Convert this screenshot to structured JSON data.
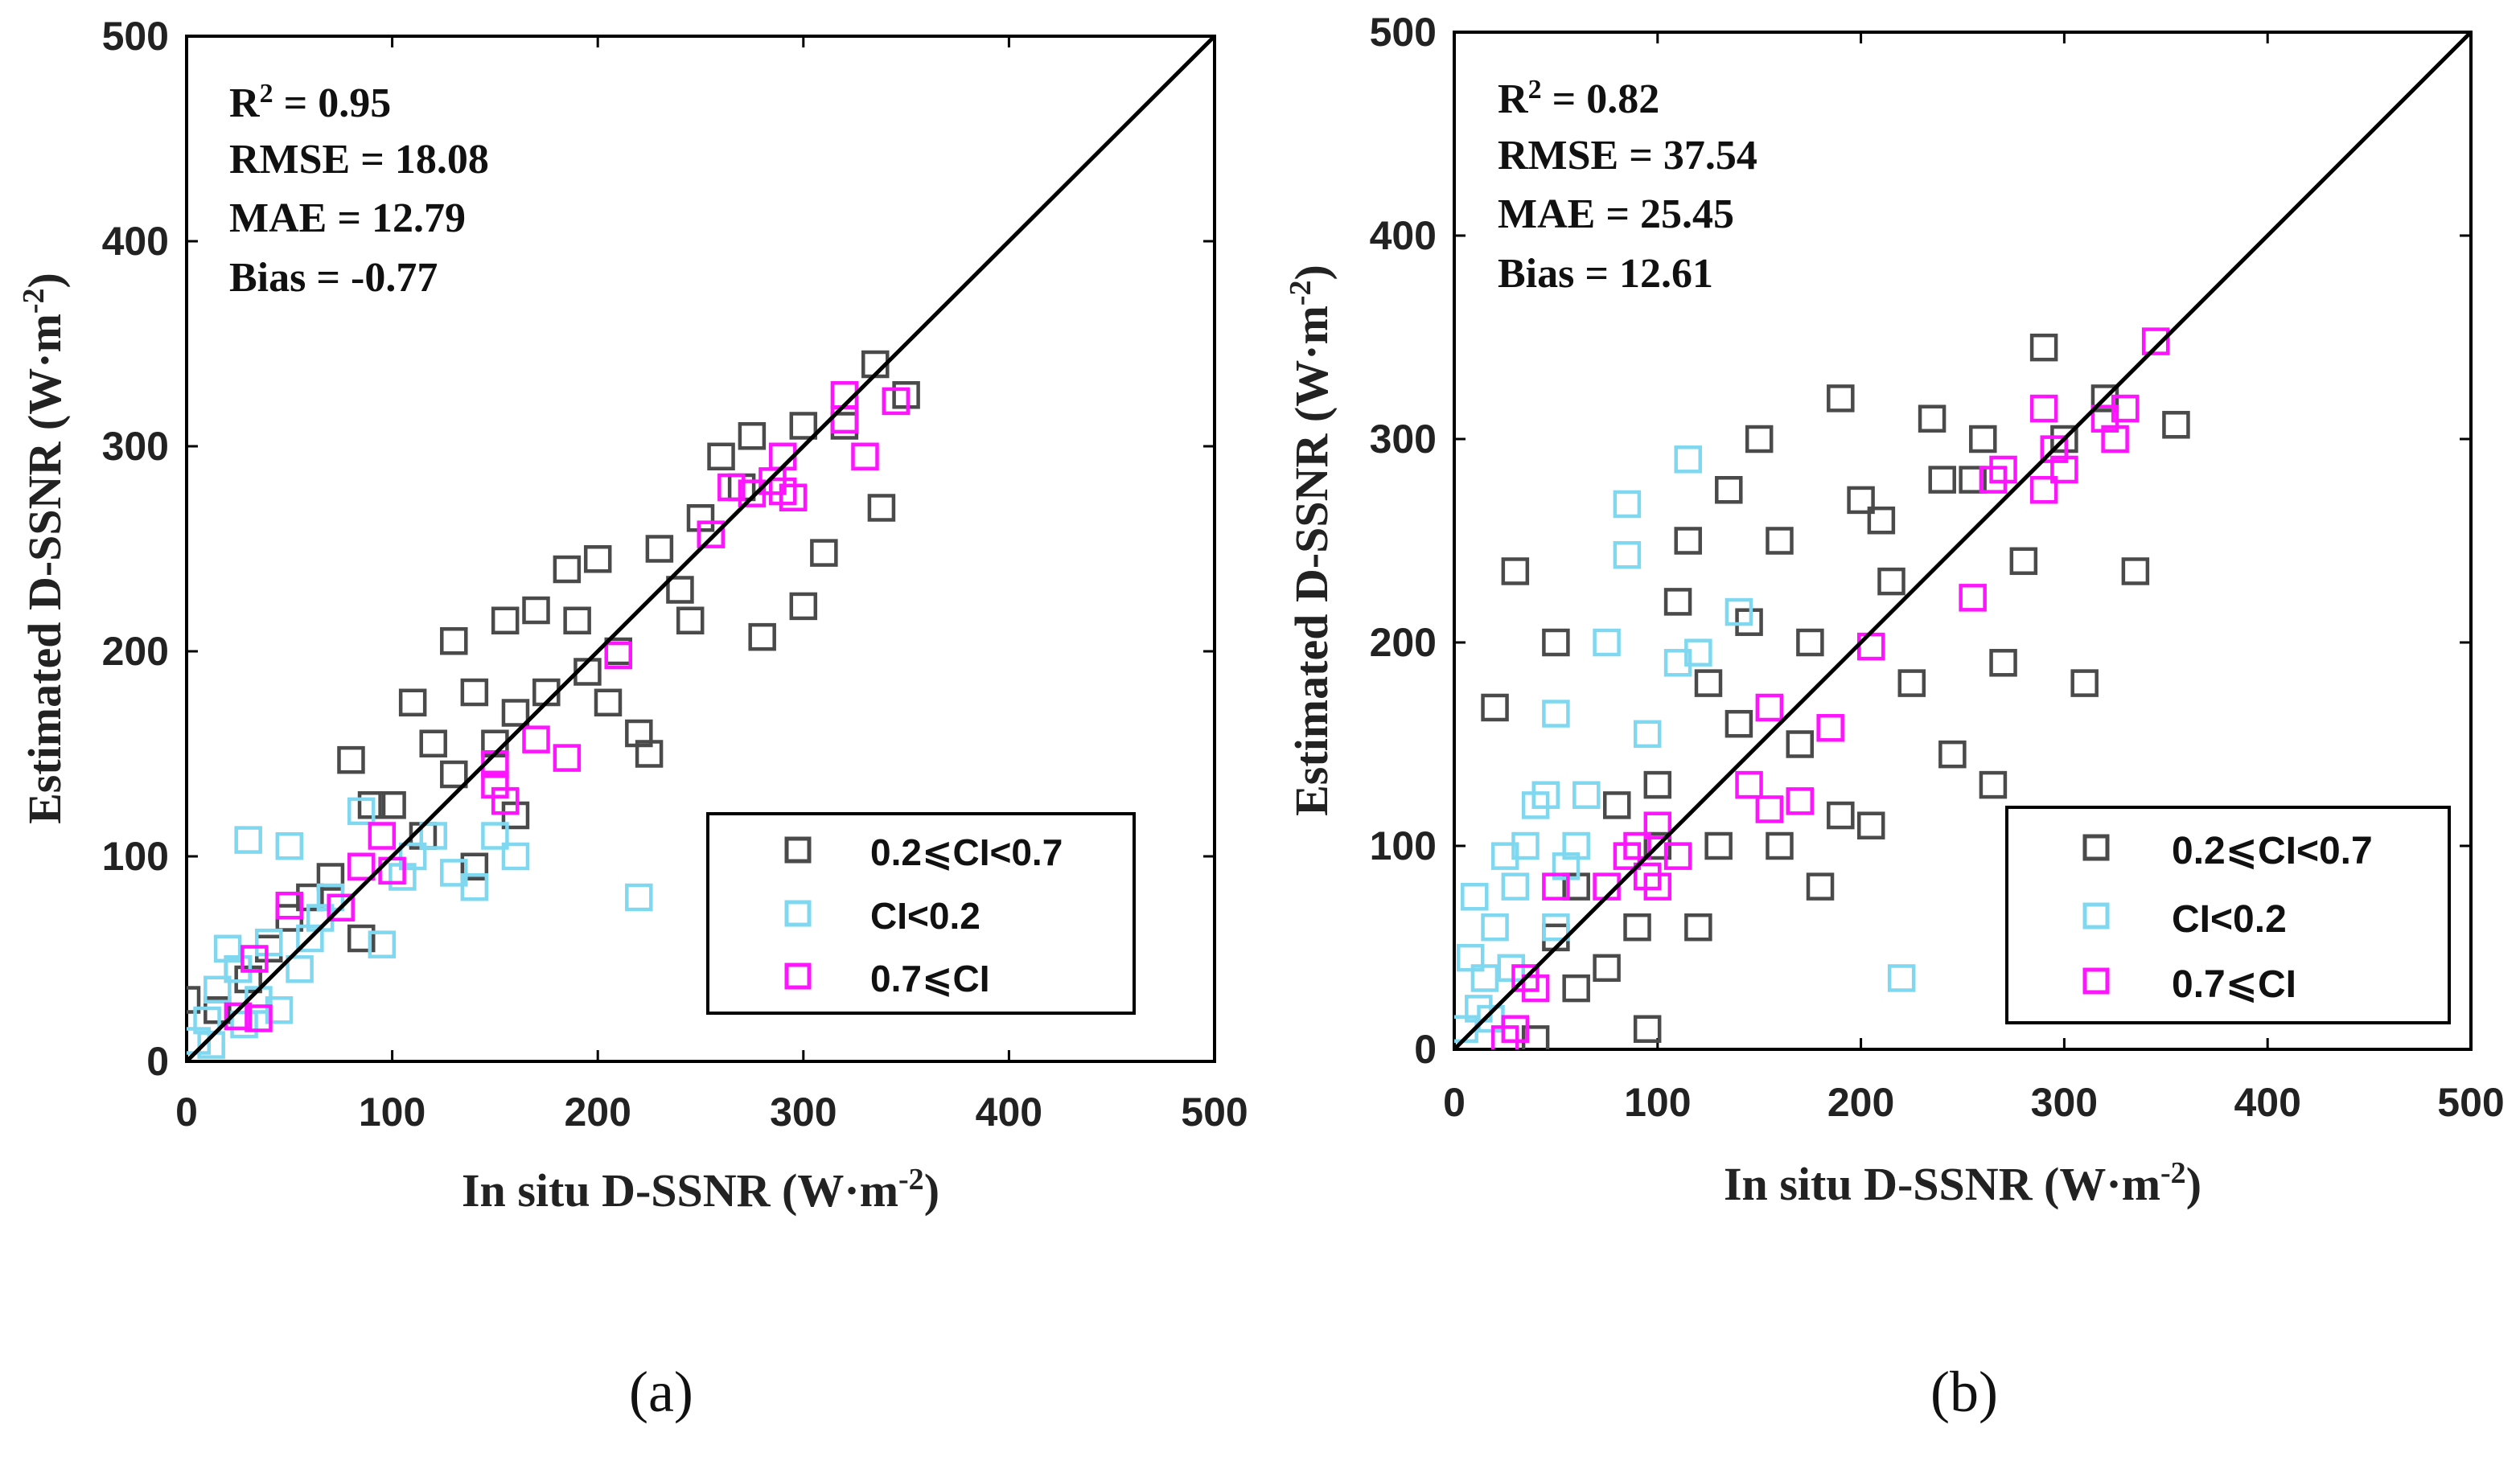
{
  "colors": {
    "cat_mid": "#4a4a4a",
    "cat_low": "#7fd8f0",
    "cat_high": "#ff14ff",
    "line": "#000000"
  },
  "chart_data": [
    {
      "type": "scatter",
      "panel": "(a)",
      "caption": "(a)",
      "xlabel": "In situ D-SSNR (W·m",
      "ylabel": "Estimated D-SSNR (W·m",
      "unit_exponent": "-2",
      "xlim": [
        0,
        500
      ],
      "ylim": [
        0,
        500
      ],
      "xticks": [
        "0",
        "100",
        "200",
        "300",
        "400",
        "500"
      ],
      "yticks": [
        "0",
        "100",
        "200",
        "300",
        "400",
        "500"
      ],
      "reference_line": "1:1",
      "stats": {
        "r2": "R",
        "r2_sup": "2",
        "r2_value": " = 0.95",
        "rmse": "RMSE = 18.08",
        "mae": "MAE = 12.79",
        "bias": "Bias = -0.77"
      },
      "legend": [
        "0.2⩽CI<0.7",
        "CI<0.2",
        "0.7⩽CI"
      ],
      "legend_position": "bottom-right",
      "series": [
        {
          "name": "0.2⩽CI<0.7",
          "points": [
            [
              0,
              30
            ],
            [
              25,
              45
            ],
            [
              40,
              55
            ],
            [
              60,
              80
            ],
            [
              80,
              147
            ],
            [
              90,
              125
            ],
            [
              110,
              175
            ],
            [
              130,
              205
            ],
            [
              140,
              180
            ],
            [
              155,
              215
            ],
            [
              170,
              220
            ],
            [
              185,
              240
            ],
            [
              200,
              245
            ],
            [
              210,
              200
            ],
            [
              220,
              160
            ],
            [
              225,
              150
            ],
            [
              240,
              230
            ],
            [
              250,
              265
            ],
            [
              260,
              295
            ],
            [
              275,
              305
            ],
            [
              290,
              295
            ],
            [
              300,
              310
            ],
            [
              320,
              310
            ],
            [
              335,
              340
            ],
            [
              350,
              325
            ],
            [
              338,
              270
            ],
            [
              310,
              248
            ],
            [
              300,
              222
            ],
            [
              280,
              207
            ],
            [
              195,
              190
            ],
            [
              175,
              180
            ],
            [
              160,
              170
            ],
            [
              150,
              155
            ],
            [
              120,
              155
            ],
            [
              100,
              125
            ],
            [
              70,
              90
            ],
            [
              50,
              70
            ],
            [
              30,
              40
            ],
            [
              15,
              25
            ],
            [
              130,
              140
            ],
            [
              190,
              215
            ],
            [
              230,
              250
            ],
            [
              270,
              280
            ],
            [
              245,
              215
            ],
            [
              205,
              175
            ],
            [
              115,
              110
            ],
            [
              160,
              120
            ],
            [
              140,
              95
            ],
            [
              85,
              60
            ]
          ]
        },
        {
          "name": "CI<0.2",
          "points": [
            [
              5,
              10
            ],
            [
              10,
              20
            ],
            [
              15,
              35
            ],
            [
              20,
              55
            ],
            [
              25,
              45
            ],
            [
              30,
              108
            ],
            [
              40,
              58
            ],
            [
              50,
              105
            ],
            [
              60,
              60
            ],
            [
              70,
              80
            ],
            [
              85,
              122
            ],
            [
              95,
              57
            ],
            [
              105,
              90
            ],
            [
              120,
              110
            ],
            [
              130,
              92
            ],
            [
              140,
              85
            ],
            [
              150,
              110
            ],
            [
              160,
              100
            ],
            [
              220,
              80
            ],
            [
              45,
              25
            ],
            [
              35,
              30
            ],
            [
              55,
              45
            ],
            [
              12,
              8
            ],
            [
              28,
              18
            ],
            [
              65,
              70
            ],
            [
              110,
              100
            ]
          ]
        },
        {
          "name": "0.7⩽CI",
          "points": [
            [
              25,
              22
            ],
            [
              35,
              21
            ],
            [
              33,
              50
            ],
            [
              50,
              76
            ],
            [
              75,
              75
            ],
            [
              85,
              95
            ],
            [
              95,
              110
            ],
            [
              100,
              93
            ],
            [
              150,
              145
            ],
            [
              155,
              127
            ],
            [
              150,
              135
            ],
            [
              170,
              157
            ],
            [
              185,
              148
            ],
            [
              210,
              198
            ],
            [
              255,
              257
            ],
            [
              265,
              280
            ],
            [
              275,
              277
            ],
            [
              285,
              283
            ],
            [
              290,
              278
            ],
            [
              295,
              275
            ],
            [
              320,
              325
            ],
            [
              320,
              313
            ],
            [
              330,
              295
            ],
            [
              345,
              322
            ],
            [
              290,
              295
            ]
          ]
        }
      ]
    },
    {
      "type": "scatter",
      "panel": "(b)",
      "caption": "(b)",
      "xlabel": "In situ D-SSNR (W·m",
      "ylabel": "Estimated D-SSNR (W·m",
      "unit_exponent": "-2",
      "xlim": [
        0,
        500
      ],
      "ylim": [
        0,
        500
      ],
      "xticks": [
        "0",
        "100",
        "200",
        "300",
        "400",
        "500"
      ],
      "yticks": [
        "0",
        "100",
        "200",
        "300",
        "400",
        "500"
      ],
      "reference_line": "1:1",
      "stats": {
        "r2": "R",
        "r2_sup": "2",
        "r2_value": " = 0.82",
        "rmse": "RMSE = 37.54",
        "mae": "MAE = 25.45",
        "bias": "Bias = 12.61"
      },
      "legend": [
        "0.2⩽CI<0.7",
        "CI<0.2",
        "0.7⩽CI"
      ],
      "legend_position": "bottom-right",
      "series": [
        {
          "name": "0.2⩽CI<0.7",
          "points": [
            [
              20,
              168
            ],
            [
              30,
              235
            ],
            [
              50,
              200
            ],
            [
              60,
              80
            ],
            [
              75,
              40
            ],
            [
              90,
              60
            ],
            [
              95,
              10
            ],
            [
              100,
              130
            ],
            [
              110,
              220
            ],
            [
              115,
              250
            ],
            [
              125,
              180
            ],
            [
              135,
              275
            ],
            [
              145,
              210
            ],
            [
              150,
              300
            ],
            [
              160,
              250
            ],
            [
              170,
              150
            ],
            [
              180,
              80
            ],
            [
              190,
              320
            ],
            [
              200,
              270
            ],
            [
              205,
              110
            ],
            [
              215,
              230
            ],
            [
              225,
              180
            ],
            [
              235,
              310
            ],
            [
              245,
              145
            ],
            [
              255,
              280
            ],
            [
              265,
              130
            ],
            [
              270,
              190
            ],
            [
              280,
              240
            ],
            [
              290,
              345
            ],
            [
              300,
              300
            ],
            [
              310,
              180
            ],
            [
              320,
              320
            ],
            [
              335,
              235
            ],
            [
              355,
              307
            ],
            [
              130,
              100
            ],
            [
              160,
              100
            ],
            [
              190,
              115
            ],
            [
              120,
              60
            ],
            [
              140,
              160
            ],
            [
              175,
              200
            ],
            [
              210,
              260
            ],
            [
              240,
              280
            ],
            [
              260,
              300
            ],
            [
              100,
              100
            ],
            [
              80,
              120
            ],
            [
              60,
              30
            ],
            [
              40,
              5
            ],
            [
              50,
              55
            ]
          ]
        },
        {
          "name": "CI<0.2",
          "points": [
            [
              5,
              10
            ],
            [
              8,
              45
            ],
            [
              10,
              75
            ],
            [
              15,
              35
            ],
            [
              20,
              60
            ],
            [
              25,
              95
            ],
            [
              30,
              80
            ],
            [
              35,
              100
            ],
            [
              40,
              120
            ],
            [
              45,
              125
            ],
            [
              50,
              165
            ],
            [
              55,
              90
            ],
            [
              60,
              100
            ],
            [
              65,
              125
            ],
            [
              75,
              200
            ],
            [
              85,
              243
            ],
            [
              85,
              268
            ],
            [
              95,
              155
            ],
            [
              110,
              190
            ],
            [
              115,
              290
            ],
            [
              120,
              195
            ],
            [
              140,
              215
            ],
            [
              220,
              35
            ],
            [
              12,
              20
            ],
            [
              18,
              15
            ],
            [
              28,
              40
            ],
            [
              50,
              60
            ]
          ]
        },
        {
          "name": "0.7⩽CI",
          "points": [
            [
              25,
              5
            ],
            [
              30,
              10
            ],
            [
              35,
              35
            ],
            [
              40,
              30
            ],
            [
              50,
              80
            ],
            [
              75,
              80
            ],
            [
              85,
              95
            ],
            [
              90,
              100
            ],
            [
              100,
              110
            ],
            [
              110,
              95
            ],
            [
              95,
              85
            ],
            [
              145,
              130
            ],
            [
              155,
              168
            ],
            [
              155,
              118
            ],
            [
              170,
              122
            ],
            [
              185,
              158
            ],
            [
              205,
              198
            ],
            [
              255,
              222
            ],
            [
              265,
              280
            ],
            [
              270,
              285
            ],
            [
              290,
              275
            ],
            [
              295,
              295
            ],
            [
              300,
              285
            ],
            [
              290,
              315
            ],
            [
              320,
              310
            ],
            [
              325,
              300
            ],
            [
              330,
              315
            ],
            [
              345,
              348
            ],
            [
              100,
              80
            ]
          ]
        }
      ]
    }
  ]
}
